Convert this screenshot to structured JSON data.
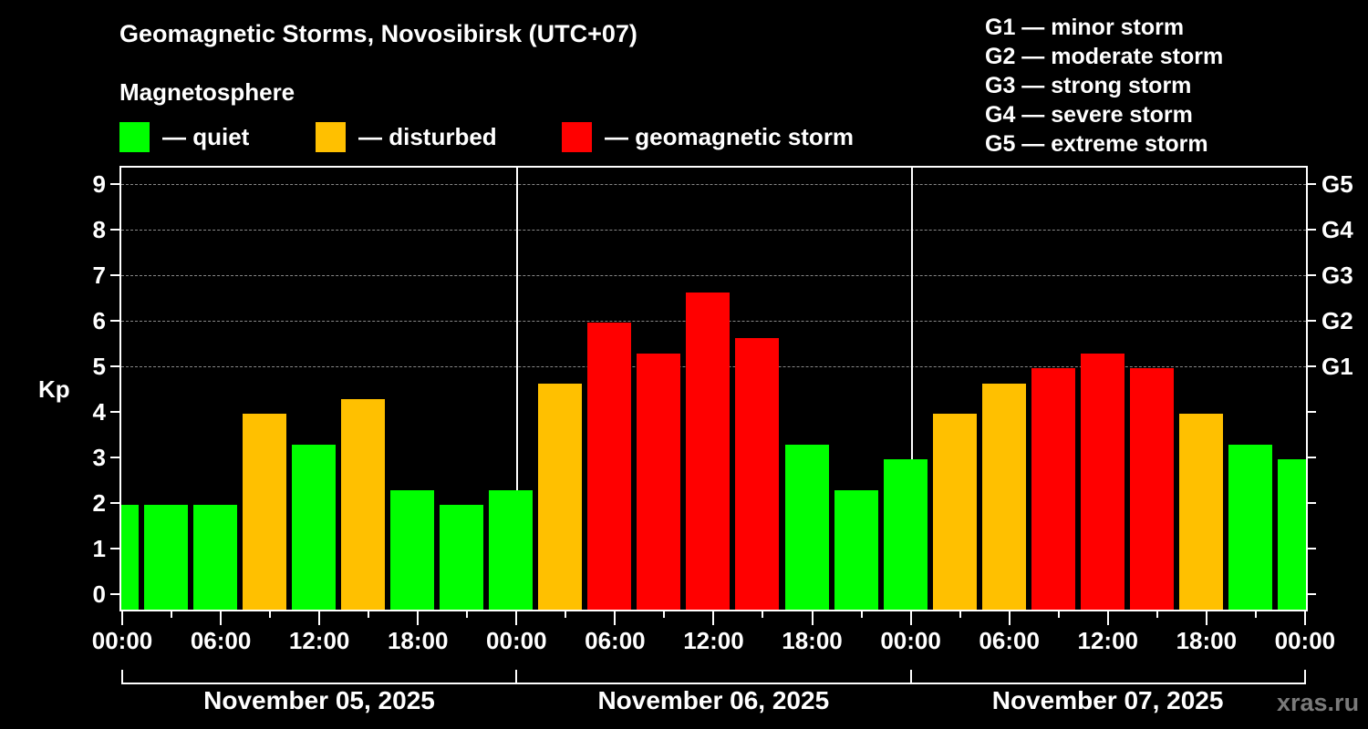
{
  "header": {
    "title": "Geomagnetic Storms, Novosibirsk (UTC+07)",
    "subtitle": "Magnetosphere"
  },
  "legend": [
    {
      "label": "— quiet",
      "color": "#00ff00"
    },
    {
      "label": "— disturbed",
      "color": "#ffc000"
    },
    {
      "label": "— geomagnetic storm",
      "color": "#ff0000"
    }
  ],
  "g_levels": [
    "G1 — minor storm",
    "G2 — moderate storm",
    "G3 — strong storm",
    "G4 — severe storm",
    "G5 — extreme storm"
  ],
  "axes": {
    "ylabel": "Kp",
    "yticks": [
      "0",
      "1",
      "2",
      "3",
      "4",
      "5",
      "6",
      "7",
      "8",
      "9"
    ],
    "right_ticks": [
      "G1",
      "G2",
      "G3",
      "G4",
      "G5"
    ],
    "xticks": [
      "00:00",
      "06:00",
      "12:00",
      "18:00",
      "00:00",
      "06:00",
      "12:00",
      "18:00",
      "00:00",
      "06:00",
      "12:00",
      "18:00",
      "00:00"
    ],
    "dates": [
      "November 05, 2025",
      "November 06, 2025",
      "November 07, 2025"
    ]
  },
  "watermark": "xras.ru",
  "colors": {
    "quiet": "#00ff00",
    "disturbed": "#ffc000",
    "storm": "#ff0000",
    "grid": "#888888"
  },
  "chart_data": {
    "type": "bar",
    "title": "Geomagnetic Storms, Novosibirsk (UTC+07)",
    "xlabel": "",
    "ylabel": "Kp",
    "ylim": [
      0,
      9
    ],
    "grid": "dashed horizontal at Kp 5-9",
    "right_axis": {
      "G1": 5,
      "G2": 6,
      "G3": 7,
      "G4": 8,
      "G5": 9
    },
    "legend": [
      "quiet",
      "disturbed",
      "geomagnetic storm"
    ],
    "categories": [
      "Nov 04 22:00 (partial)",
      "Nov 05 01:00",
      "Nov 05 04:00",
      "Nov 05 07:00",
      "Nov 05 10:00",
      "Nov 05 13:00",
      "Nov 05 16:00",
      "Nov 05 19:00",
      "Nov 05 22:00",
      "Nov 06 01:00",
      "Nov 06 04:00",
      "Nov 06 07:00",
      "Nov 06 10:00",
      "Nov 06 13:00",
      "Nov 06 16:00",
      "Nov 06 19:00",
      "Nov 06 22:00",
      "Nov 07 01:00",
      "Nov 07 04:00",
      "Nov 07 07:00",
      "Nov 07 10:00",
      "Nov 07 13:00",
      "Nov 07 16:00",
      "Nov 07 19:00",
      "Nov 07 22:00 (partial)"
    ],
    "values": [
      2,
      2,
      2,
      4,
      3.33,
      4.33,
      2.33,
      2,
      2.33,
      4.67,
      6,
      5.33,
      6.67,
      5.67,
      3.33,
      2.33,
      3,
      4,
      4.67,
      5,
      5.33,
      5,
      4,
      3.33,
      3
    ],
    "status": [
      "quiet",
      "quiet",
      "quiet",
      "disturbed",
      "quiet",
      "disturbed",
      "quiet",
      "quiet",
      "quiet",
      "disturbed",
      "storm",
      "storm",
      "storm",
      "storm",
      "quiet",
      "quiet",
      "quiet",
      "disturbed",
      "disturbed",
      "storm",
      "storm",
      "storm",
      "disturbed",
      "quiet",
      "quiet"
    ]
  }
}
